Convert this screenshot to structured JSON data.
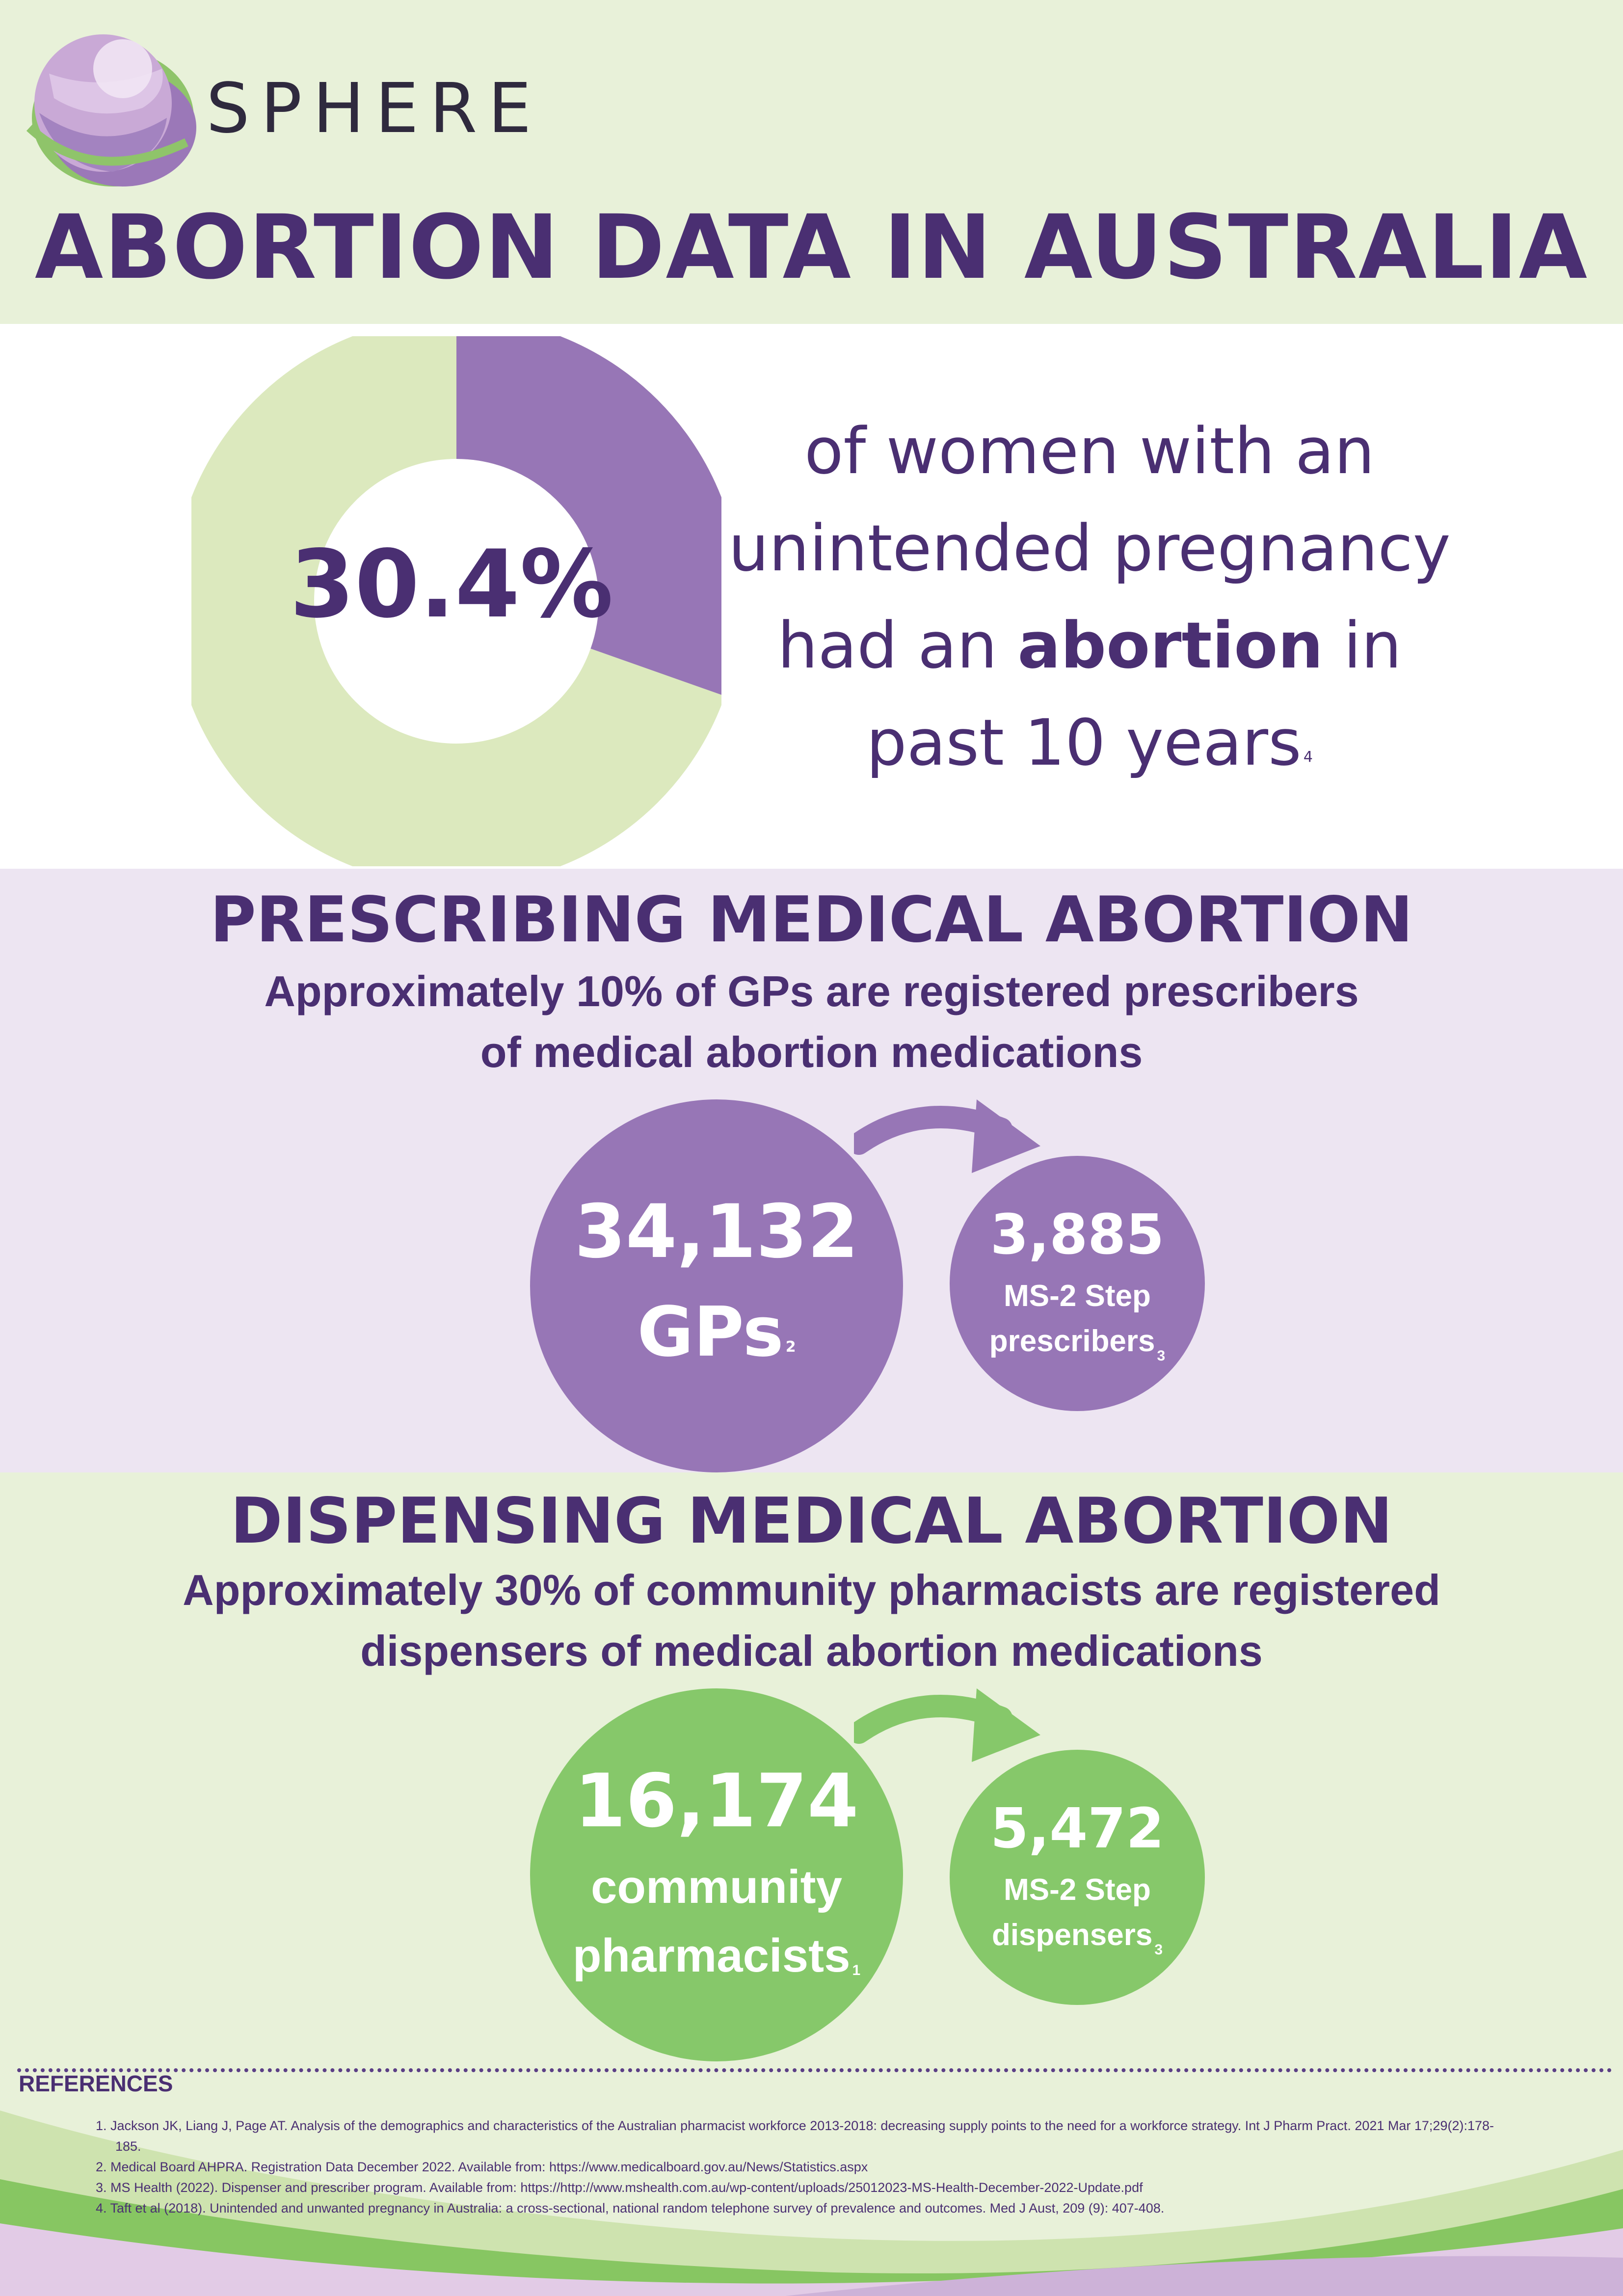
{
  "brand": {
    "name": "SPHERE"
  },
  "title": "ABORTION DATA IN AUSTRALIA",
  "headline_stat": {
    "value_label": "30.4%",
    "value_fraction": 0.304,
    "text_line1": "of women with an",
    "text_line2": "unintended pregnancy",
    "text_line3_pre": "had an ",
    "text_line3_bold": "abortion",
    "text_line3_post": " in",
    "text_line4": "past 10 years",
    "ref": "4"
  },
  "prescribing": {
    "title": "PRESCRIBING MEDICAL ABORTION",
    "subtitle_line1": "Approximately 10% of GPs are registered prescribers",
    "subtitle_line2": "of medical abortion medications",
    "big": {
      "number": "34,132",
      "label": "GPs",
      "ref": "2"
    },
    "small": {
      "number": "3,885",
      "label_line1": "MS-2 Step",
      "label_line2": "prescribers",
      "ref": "3"
    }
  },
  "dispensing": {
    "title": "DISPENSING MEDICAL ABORTION",
    "subtitle_line1": "Approximately 30% of community pharmacists are registered",
    "subtitle_line2": "dispensers of medical abortion medications",
    "big": {
      "number": "16,174",
      "label_line1": "community",
      "label_line2": "pharmacists",
      "ref": "1"
    },
    "small": {
      "number": "5,472",
      "label_line1": "MS-2 Step",
      "label_line2": "dispensers",
      "ref": "3"
    }
  },
  "references": {
    "heading": "REFERENCES",
    "items": [
      "1. Jackson JK, Liang J, Page AT. Analysis of the demographics and characteristics of the Australian pharmacist workforce 2013-2018: decreasing supply points to the need for a workforce strategy. Int J Pharm Pract. 2021 Mar 17;29(2):178-185.",
      "2. Medical Board AHPRA. Registration Data December 2022. Available from: https://www.medicalboard.gov.au/News/Statistics.aspx",
      "3. MS Health (2022). Dispenser and prescriber program. Available from: https://http://www.mshealth.com.au/wp-content/uploads/25012023-MS-Health-December-2022-Update.pdf",
      "4. Taft et al (2018). Unintended and unwanted pregnancy in Australia: a cross-sectional, national random telephone survey of prevalence and outcomes. Med J Aust, 209 (9): 407-408."
    ]
  },
  "colors": {
    "purple_dark": "#4a2f72",
    "purple": "#9776b6",
    "green": "#86c86a",
    "green_pale": "#dce9be",
    "lavender_bg": "#ede5f2",
    "green_bg": "#e8f1d9"
  }
}
